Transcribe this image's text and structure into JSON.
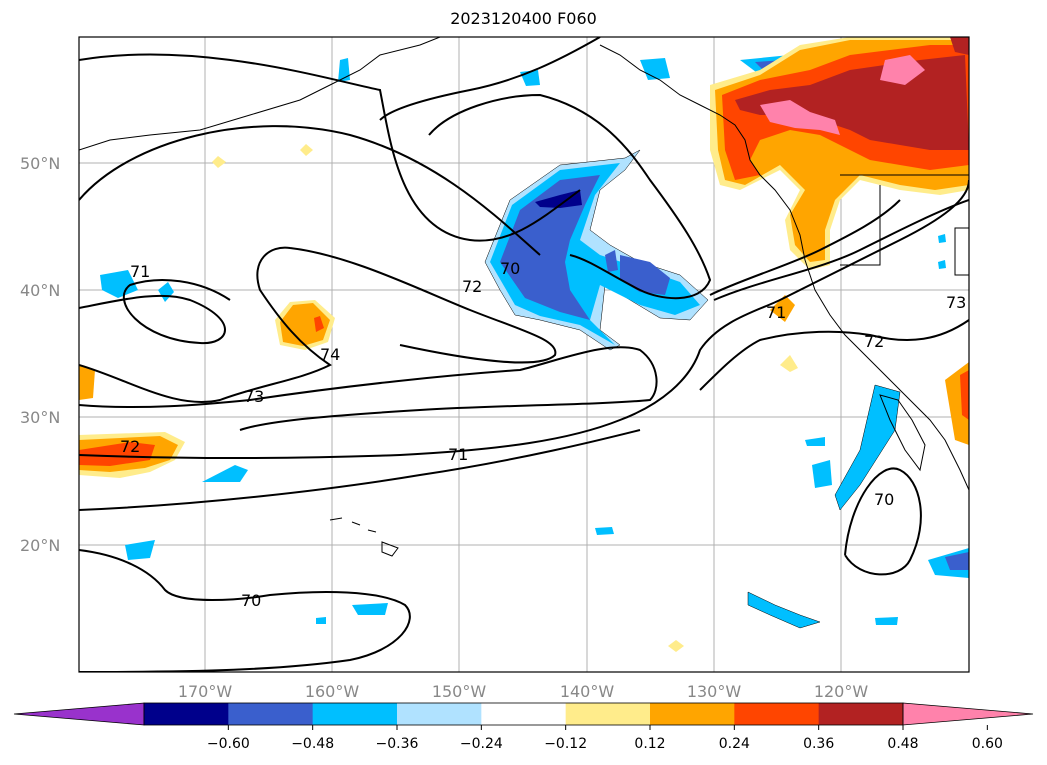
{
  "title": "2023120400 F060",
  "lat_labels": [
    "50°N",
    "40°N",
    "30°N",
    "20°N"
  ],
  "lon_labels": [
    "170°W",
    "160°W",
    "150°W",
    "140°W",
    "130°W",
    "120°W"
  ],
  "colorbar": {
    "ticks": [
      "−0.60",
      "−0.48",
      "−0.36",
      "−0.24",
      "−0.12",
      "0.12",
      "0.24",
      "0.36",
      "0.48",
      "0.60"
    ],
    "colors": [
      "#9932cc",
      "#00008b",
      "#3a5fcd",
      "#00bfff",
      "#b0e2ff",
      "#ffffff",
      "#ffec8b",
      "#ffa500",
      "#ff4500",
      "#b22222",
      "#ff82ab"
    ]
  },
  "contour_labels": [
    "71",
    "72",
    "70",
    "74",
    "73",
    "71",
    "72",
    "71",
    "72",
    "73",
    "70",
    "70"
  ]
}
